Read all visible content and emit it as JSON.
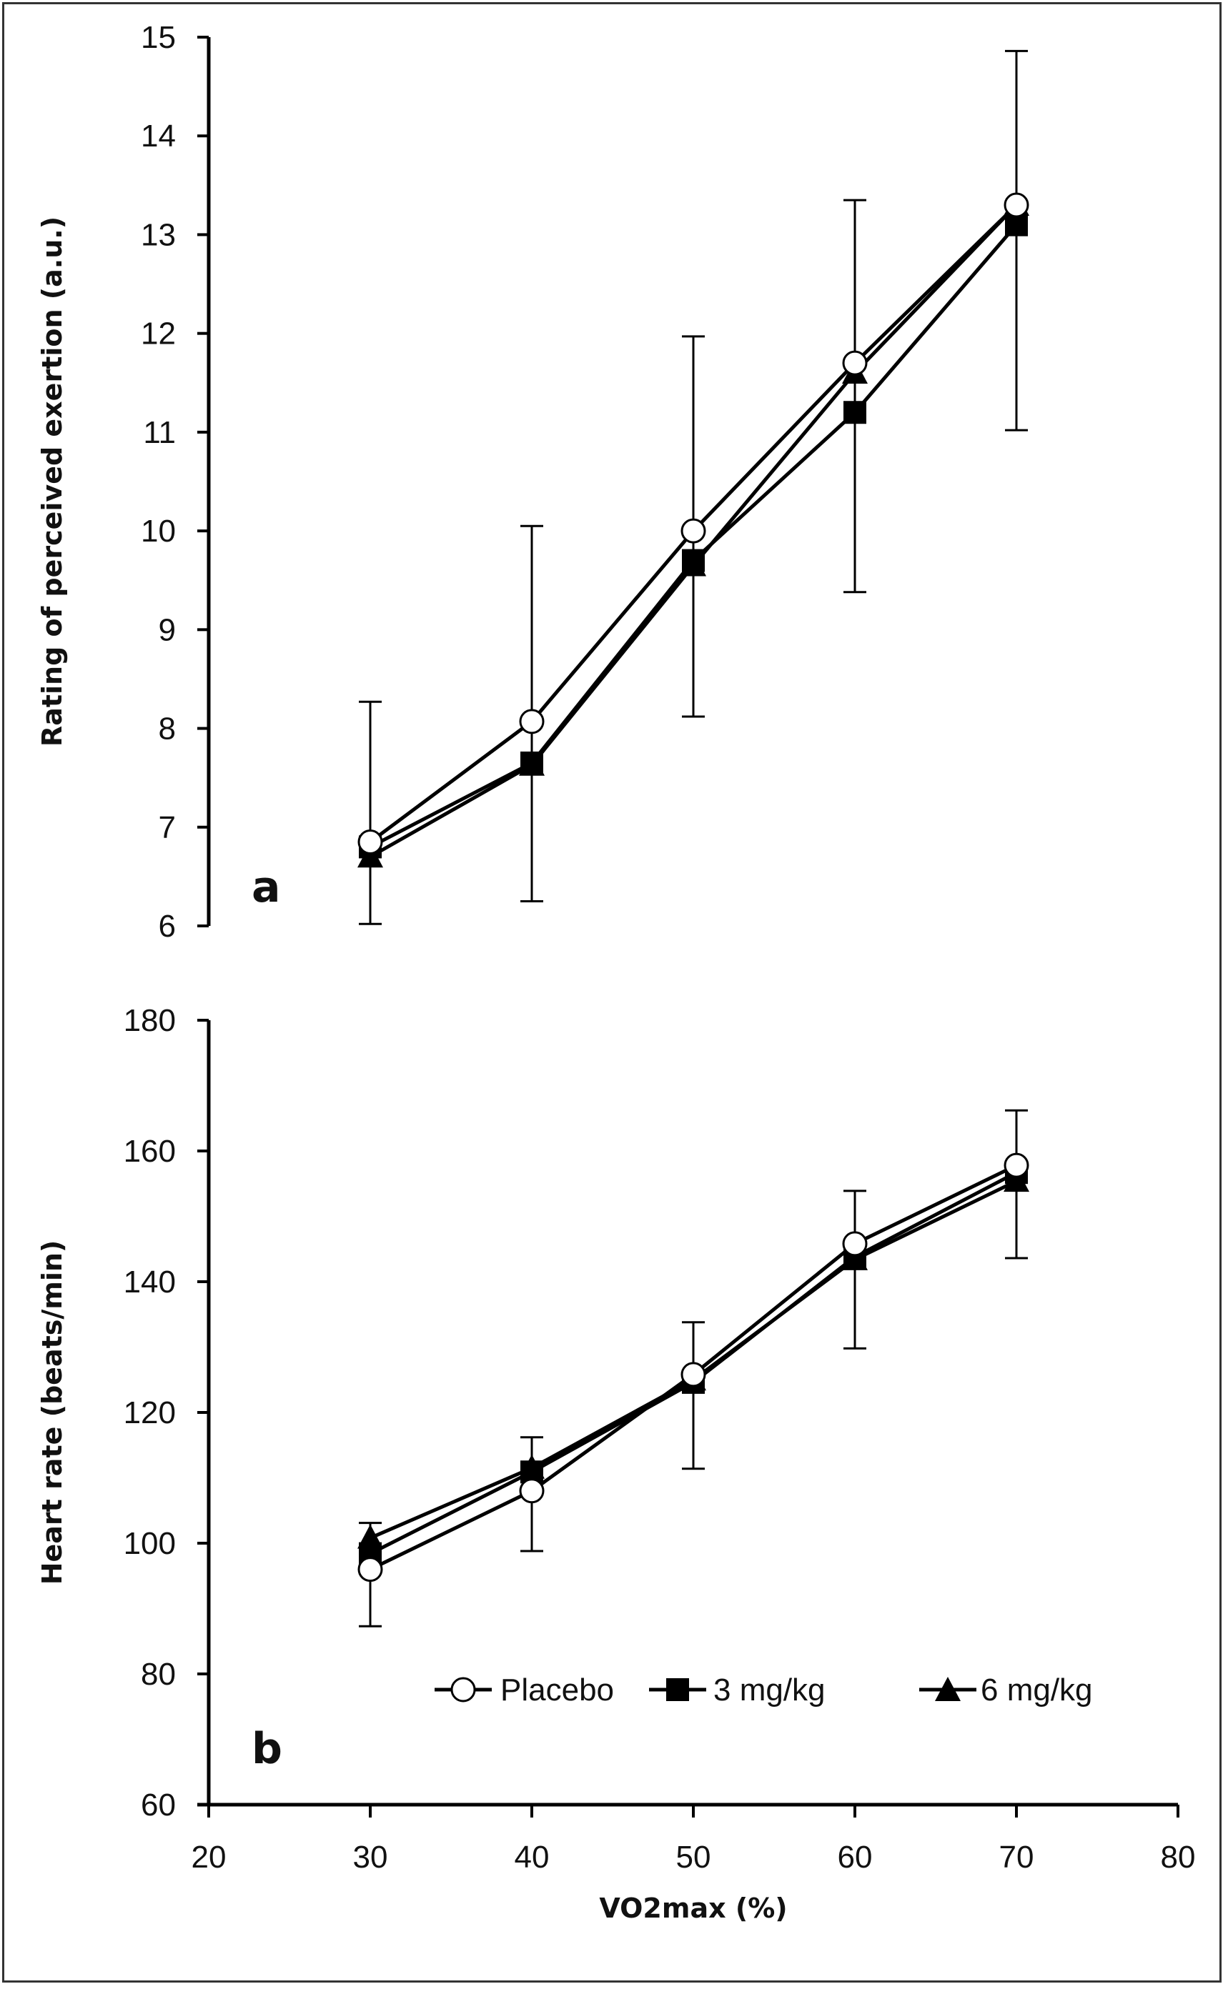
{
  "chart_data": [
    {
      "id": "a",
      "type": "line",
      "panel_label": "a",
      "title": "",
      "xlabel": "",
      "ylabel": "Rating of perceived exertion (a.u.)",
      "xlim": [
        20,
        80
      ],
      "ylim": [
        6,
        15
      ],
      "yticks": [
        6,
        7,
        8,
        9,
        10,
        11,
        12,
        13,
        14,
        15
      ],
      "x": [
        30,
        40,
        50,
        60,
        70
      ],
      "grid": false,
      "series": [
        {
          "name": "Placebo",
          "marker": "circle-open",
          "values": [
            6.85,
            8.07,
            10.0,
            11.7,
            13.3
          ]
        },
        {
          "name": "3 mg/kg",
          "marker": "square-filled",
          "values": [
            6.8,
            7.65,
            9.7,
            11.2,
            13.1
          ]
        },
        {
          "name": "6 mg/kg",
          "marker": "triangle-filled",
          "values": [
            6.7,
            7.63,
            9.65,
            11.6,
            13.3
          ]
        }
      ],
      "error_bars": [
        {
          "x": 30,
          "upper": 8.27,
          "lower": 6.02
        },
        {
          "x": 40,
          "upper": 10.05,
          "lower": 6.25
        },
        {
          "x": 50,
          "upper": 11.97,
          "lower": 8.12
        },
        {
          "x": 60,
          "upper": 13.35,
          "lower": 9.38
        },
        {
          "x": 70,
          "upper": 14.86,
          "lower": 11.02
        }
      ]
    },
    {
      "id": "b",
      "type": "line",
      "panel_label": "b",
      "title": "",
      "xlabel": "VO2max (%)",
      "ylabel": "Heart rate (beats/min)",
      "xlim": [
        20,
        80
      ],
      "ylim": [
        60,
        180
      ],
      "xticks": [
        20,
        30,
        40,
        50,
        60,
        70,
        80
      ],
      "yticks": [
        60,
        80,
        100,
        120,
        140,
        160,
        180
      ],
      "x": [
        30,
        40,
        50,
        60,
        70
      ],
      "grid": false,
      "legend": {
        "position": "bottom-right",
        "orientation": "horizontal"
      },
      "series": [
        {
          "name": "Placebo",
          "marker": "circle-open",
          "values": [
            96.0,
            108.0,
            125.8,
            145.8,
            157.8
          ]
        },
        {
          "name": "3 mg/kg",
          "marker": "square-filled",
          "values": [
            98.4,
            110.9,
            124.6,
            143.8,
            156.7
          ]
        },
        {
          "name": "6 mg/kg",
          "marker": "triangle-filled",
          "values": [
            100.8,
            111.5,
            125.0,
            143.4,
            155.4
          ]
        }
      ],
      "error_bars": [
        {
          "x": 30,
          "upper": 103.1,
          "lower": 87.3
        },
        {
          "x": 40,
          "upper": 116.2,
          "lower": 98.8
        },
        {
          "x": 50,
          "upper": 133.8,
          "lower": 111.4
        },
        {
          "x": 60,
          "upper": 153.9,
          "lower": 129.8
        },
        {
          "x": 70,
          "upper": 166.2,
          "lower": 143.6
        }
      ]
    }
  ],
  "legend_items": [
    "Placebo",
    "3 mg/kg",
    "6 mg/kg"
  ]
}
